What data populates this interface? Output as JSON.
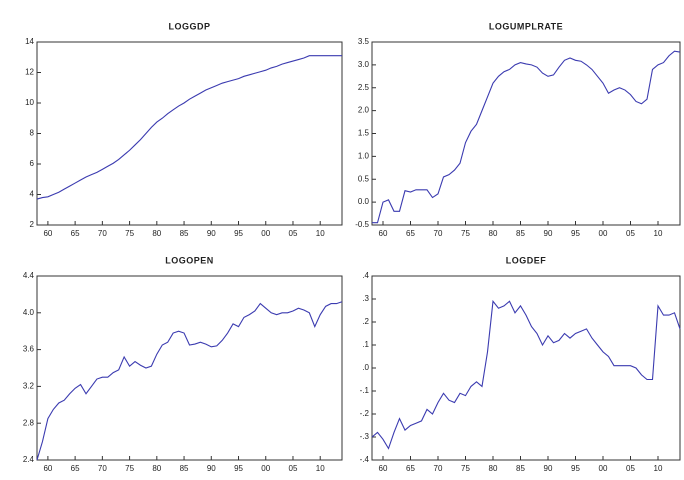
{
  "chart_data": [
    {
      "type": "line",
      "title": "LOGGDP",
      "color": "#3b3bb0",
      "x": [
        1958,
        1959,
        1960,
        1961,
        1962,
        1963,
        1964,
        1965,
        1966,
        1967,
        1968,
        1969,
        1970,
        1971,
        1972,
        1973,
        1974,
        1975,
        1976,
        1977,
        1978,
        1979,
        1980,
        1981,
        1982,
        1983,
        1984,
        1985,
        1986,
        1987,
        1988,
        1989,
        1990,
        1991,
        1992,
        1993,
        1994,
        1995,
        1996,
        1997,
        1998,
        1999,
        2000,
        2001,
        2002,
        2003,
        2004,
        2005,
        2006,
        2007,
        2008,
        2009,
        2010,
        2011,
        2012,
        2013,
        2014
      ],
      "values": [
        3.7,
        3.8,
        3.85,
        4.0,
        4.15,
        4.35,
        4.55,
        4.75,
        4.95,
        5.15,
        5.3,
        5.45,
        5.65,
        5.85,
        6.05,
        6.3,
        6.6,
        6.9,
        7.25,
        7.6,
        8.0,
        8.4,
        8.75,
        9.0,
        9.3,
        9.55,
        9.8,
        10.0,
        10.25,
        10.45,
        10.65,
        10.85,
        11.0,
        11.15,
        11.3,
        11.4,
        11.5,
        11.6,
        11.75,
        11.85,
        11.95,
        12.05,
        12.15,
        12.3,
        12.4,
        12.55,
        12.65,
        12.75,
        12.85,
        12.95,
        13.1,
        13.1,
        13.1,
        13.1,
        13.1,
        13.1,
        13.1
      ],
      "xlim": [
        1958,
        2014
      ],
      "xticks": [
        {
          "value": 1960,
          "label": "60"
        },
        {
          "value": 1965,
          "label": "65"
        },
        {
          "value": 1970,
          "label": "70"
        },
        {
          "value": 1975,
          "label": "75"
        },
        {
          "value": 1980,
          "label": "80"
        },
        {
          "value": 1985,
          "label": "85"
        },
        {
          "value": 1990,
          "label": "90"
        },
        {
          "value": 1995,
          "label": "95"
        },
        {
          "value": 2000,
          "label": "00"
        },
        {
          "value": 2005,
          "label": "05"
        },
        {
          "value": 2010,
          "label": "10"
        }
      ],
      "ylim": [
        2,
        14
      ],
      "yticks": [
        2,
        4,
        6,
        8,
        10,
        12,
        14
      ]
    },
    {
      "type": "line",
      "title": "LOGUMPLRATE",
      "color": "#3b3bb0",
      "x": [
        1958,
        1959,
        1960,
        1961,
        1962,
        1963,
        1964,
        1965,
        1966,
        1967,
        1968,
        1969,
        1970,
        1971,
        1972,
        1973,
        1974,
        1975,
        1976,
        1977,
        1978,
        1979,
        1980,
        1981,
        1982,
        1983,
        1984,
        1985,
        1986,
        1987,
        1988,
        1989,
        1990,
        1991,
        1992,
        1993,
        1994,
        1995,
        1996,
        1997,
        1998,
        1999,
        2000,
        2001,
        2002,
        2003,
        2004,
        2005,
        2006,
        2007,
        2008,
        2009,
        2010,
        2011,
        2012,
        2013,
        2014
      ],
      "values": [
        -0.45,
        -0.45,
        0.0,
        0.05,
        -0.2,
        -0.2,
        0.25,
        0.22,
        0.27,
        0.27,
        0.27,
        0.1,
        0.18,
        0.55,
        0.6,
        0.7,
        0.85,
        1.3,
        1.55,
        1.7,
        2.0,
        2.3,
        2.6,
        2.75,
        2.85,
        2.9,
        3.0,
        3.05,
        3.02,
        3.0,
        2.95,
        2.82,
        2.75,
        2.78,
        2.95,
        3.1,
        3.15,
        3.1,
        3.08,
        3.0,
        2.9,
        2.75,
        2.6,
        2.38,
        2.45,
        2.5,
        2.45,
        2.35,
        2.2,
        2.15,
        2.25,
        2.9,
        3.0,
        3.05,
        3.2,
        3.3,
        3.28
      ],
      "xlim": [
        1958,
        2014
      ],
      "xticks": [
        {
          "value": 1960,
          "label": "60"
        },
        {
          "value": 1965,
          "label": "65"
        },
        {
          "value": 1970,
          "label": "70"
        },
        {
          "value": 1975,
          "label": "75"
        },
        {
          "value": 1980,
          "label": "80"
        },
        {
          "value": 1985,
          "label": "85"
        },
        {
          "value": 1990,
          "label": "90"
        },
        {
          "value": 1995,
          "label": "95"
        },
        {
          "value": 2000,
          "label": "00"
        },
        {
          "value": 2005,
          "label": "05"
        },
        {
          "value": 2010,
          "label": "10"
        }
      ],
      "ylim": [
        -0.5,
        3.5
      ],
      "yticks": [
        -0.5,
        {
          "value": 0,
          "label": "0.0"
        },
        0.5,
        {
          "value": 1,
          "label": "1.0"
        },
        1.5,
        {
          "value": 2,
          "label": "2.0"
        },
        2.5,
        {
          "value": 3,
          "label": "3.0"
        },
        3.5
      ]
    },
    {
      "type": "line",
      "title": "LOGOPEN",
      "color": "#3b3bb0",
      "x": [
        1958,
        1959,
        1960,
        1961,
        1962,
        1963,
        1964,
        1965,
        1966,
        1967,
        1968,
        1969,
        1970,
        1971,
        1972,
        1973,
        1974,
        1975,
        1976,
        1977,
        1978,
        1979,
        1980,
        1981,
        1982,
        1983,
        1984,
        1985,
        1986,
        1987,
        1988,
        1989,
        1990,
        1991,
        1992,
        1993,
        1994,
        1995,
        1996,
        1997,
        1998,
        1999,
        2000,
        2001,
        2002,
        2003,
        2004,
        2005,
        2006,
        2007,
        2008,
        2009,
        2010,
        2011,
        2012,
        2013,
        2014
      ],
      "values": [
        2.4,
        2.6,
        2.85,
        2.95,
        3.02,
        3.05,
        3.12,
        3.18,
        3.22,
        3.12,
        3.2,
        3.28,
        3.3,
        3.3,
        3.35,
        3.38,
        3.52,
        3.42,
        3.47,
        3.43,
        3.4,
        3.42,
        3.55,
        3.65,
        3.68,
        3.78,
        3.8,
        3.78,
        3.65,
        3.66,
        3.68,
        3.66,
        3.63,
        3.64,
        3.7,
        3.78,
        3.88,
        3.85,
        3.95,
        3.98,
        4.02,
        4.1,
        4.05,
        4.0,
        3.98,
        4.0,
        4.0,
        4.02,
        4.05,
        4.03,
        4.0,
        3.85,
        3.98,
        4.07,
        4.1,
        4.1,
        4.12
      ],
      "xlim": [
        1958,
        2014
      ],
      "xticks": [
        {
          "value": 1960,
          "label": "60"
        },
        {
          "value": 1965,
          "label": "65"
        },
        {
          "value": 1970,
          "label": "70"
        },
        {
          "value": 1975,
          "label": "75"
        },
        {
          "value": 1980,
          "label": "80"
        },
        {
          "value": 1985,
          "label": "85"
        },
        {
          "value": 1990,
          "label": "90"
        },
        {
          "value": 1995,
          "label": "95"
        },
        {
          "value": 2000,
          "label": "00"
        },
        {
          "value": 2005,
          "label": "05"
        },
        {
          "value": 2010,
          "label": "10"
        }
      ],
      "ylim": [
        2.4,
        4.4
      ],
      "yticks": [
        2.4,
        2.8,
        3.2,
        3.6,
        {
          "value": 4,
          "label": "4.0"
        },
        4.4
      ]
    },
    {
      "type": "line",
      "title": "LOGDEF",
      "color": "#3b3bb0",
      "x": [
        1958,
        1959,
        1960,
        1961,
        1962,
        1963,
        1964,
        1965,
        1966,
        1967,
        1968,
        1969,
        1970,
        1971,
        1972,
        1973,
        1974,
        1975,
        1976,
        1977,
        1978,
        1979,
        1980,
        1981,
        1982,
        1983,
        1984,
        1985,
        1986,
        1987,
        1988,
        1989,
        1990,
        1991,
        1992,
        1993,
        1994,
        1995,
        1996,
        1997,
        1998,
        1999,
        2000,
        2001,
        2002,
        2003,
        2004,
        2005,
        2006,
        2007,
        2008,
        2009,
        2010,
        2011,
        2012,
        2013,
        2014
      ],
      "values": [
        -0.3,
        -0.28,
        -0.31,
        -0.35,
        -0.28,
        -0.22,
        -0.27,
        -0.25,
        -0.24,
        -0.23,
        -0.18,
        -0.2,
        -0.15,
        -0.11,
        -0.14,
        -0.15,
        -0.11,
        -0.12,
        -0.08,
        -0.06,
        -0.08,
        0.07,
        0.29,
        0.26,
        0.27,
        0.29,
        0.24,
        0.27,
        0.23,
        0.18,
        0.15,
        0.1,
        0.14,
        0.11,
        0.12,
        0.15,
        0.13,
        0.15,
        0.16,
        0.17,
        0.13,
        0.1,
        0.07,
        0.05,
        0.01,
        0.01,
        0.01,
        0.01,
        0.0,
        -0.03,
        -0.05,
        -0.05,
        0.27,
        0.23,
        0.23,
        0.24,
        0.17
      ],
      "xlim": [
        1958,
        2014
      ],
      "xticks": [
        {
          "value": 1960,
          "label": "60"
        },
        {
          "value": 1965,
          "label": "65"
        },
        {
          "value": 1970,
          "label": "70"
        },
        {
          "value": 1975,
          "label": "75"
        },
        {
          "value": 1980,
          "label": "80"
        },
        {
          "value": 1985,
          "label": "85"
        },
        {
          "value": 1990,
          "label": "90"
        },
        {
          "value": 1995,
          "label": "95"
        },
        {
          "value": 2000,
          "label": "00"
        },
        {
          "value": 2005,
          "label": "05"
        },
        {
          "value": 2010,
          "label": "10"
        }
      ],
      "ylim": [
        -0.4,
        0.4
      ],
      "yticks": [
        {
          "value": -0.4,
          "label": "-.4"
        },
        {
          "value": -0.3,
          "label": "-.3"
        },
        {
          "value": -0.2,
          "label": "-.2"
        },
        {
          "value": -0.1,
          "label": "-.1"
        },
        {
          "value": 0,
          "label": ".0"
        },
        {
          "value": 0.1,
          "label": ".1"
        },
        {
          "value": 0.2,
          "label": ".2"
        },
        {
          "value": 0.3,
          "label": ".3"
        },
        {
          "value": 0.4,
          "label": ".4"
        }
      ]
    }
  ]
}
